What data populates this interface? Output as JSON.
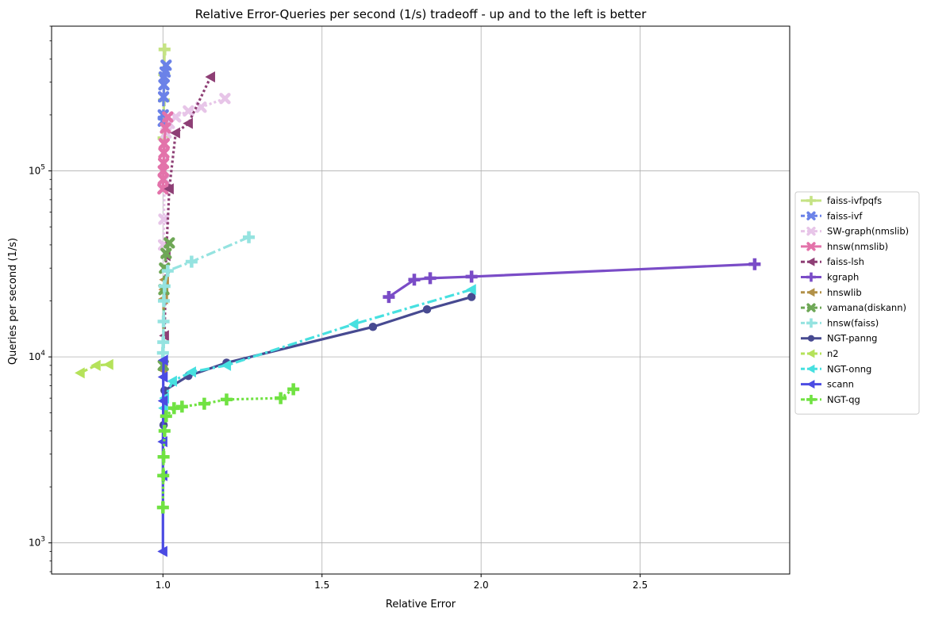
{
  "chart_data": {
    "type": "line",
    "title": "Relative Error-Queries per second (1/s) tradeoff - up and to the left is better",
    "xlabel": "Relative Error",
    "ylabel": "Queries per second (1/s)",
    "xscale": "linear",
    "yscale": "log",
    "xlim": [
      0.65,
      2.97
    ],
    "ylim": [
      680,
      600000
    ],
    "xticks": [
      1.0,
      1.5,
      2.0,
      2.5
    ],
    "xtick_labels": [
      "1.0",
      "1.5",
      "2.0",
      "2.5"
    ],
    "yticks": [
      1000,
      10000,
      100000
    ],
    "ytick_labels": [
      "10^3",
      "10^4",
      "10^5"
    ],
    "grid": true,
    "legend_position": "right, outside plot",
    "series": [
      {
        "name": "faiss-ivfpqfs",
        "color": "#c5e384",
        "marker": "plus",
        "linestyle": "solid",
        "points": [
          [
            1.005,
            450000
          ],
          [
            1.004,
            330000
          ],
          [
            1.003,
            240000
          ],
          [
            1.002,
            150000
          ]
        ]
      },
      {
        "name": "faiss-ivf",
        "color": "#6b82e8",
        "marker": "x",
        "linestyle": "dashed",
        "points": [
          [
            1.01,
            370000
          ],
          [
            1.007,
            340000
          ],
          [
            1.004,
            320000
          ],
          [
            1.003,
            290000
          ],
          [
            1.002,
            250000
          ],
          [
            1.001,
            200000
          ],
          [
            1.001,
            185000
          ]
        ]
      },
      {
        "name": "SW-graph(nmslib)",
        "color": "#e7c5e8",
        "marker": "x",
        "linestyle": "dotted",
        "points": [
          [
            1.195,
            245000
          ],
          [
            1.12,
            220000
          ],
          [
            1.08,
            210000
          ],
          [
            1.04,
            195000
          ],
          [
            1.02,
            180000
          ],
          [
            1.01,
            160000
          ],
          [
            1.005,
            90000
          ],
          [
            1.003,
            55000
          ],
          [
            1.002,
            40000
          ]
        ]
      },
      {
        "name": "hnsw(nmslib)",
        "color": "#e373aa",
        "marker": "x",
        "linestyle": "solid",
        "points": [
          [
            1.015,
            195000
          ],
          [
            1.008,
            170000
          ],
          [
            1.004,
            140000
          ],
          [
            1.003,
            125000
          ],
          [
            1.002,
            110000
          ],
          [
            1.001,
            100000
          ],
          [
            1.001,
            90000
          ],
          [
            1.0,
            80000
          ]
        ]
      },
      {
        "name": "faiss-lsh",
        "color": "#8e3f75",
        "marker": "triangle-left",
        "linestyle": "dotted",
        "points": [
          [
            1.15,
            320000
          ],
          [
            1.08,
            180000
          ],
          [
            1.04,
            160000
          ],
          [
            1.02,
            80000
          ],
          [
            1.01,
            35000
          ],
          [
            1.005,
            13000
          ]
        ]
      },
      {
        "name": "kgraph",
        "color": "#7a4cc7",
        "marker": "plus",
        "linestyle": "solid",
        "points": [
          [
            2.86,
            31500
          ],
          [
            1.97,
            27000
          ],
          [
            1.84,
            26500
          ],
          [
            1.79,
            26000
          ],
          [
            1.71,
            21000
          ]
        ]
      },
      {
        "name": "hnswlib",
        "color": "#b29149",
        "marker": "triangle-left",
        "linestyle": "dashed",
        "points": [
          [
            1.005,
            26000
          ],
          [
            1.003,
            23000
          ],
          [
            1.002,
            20500
          ],
          [
            1.001,
            9500
          ],
          [
            1.0,
            8500
          ]
        ]
      },
      {
        "name": "vamana(diskann)",
        "color": "#6ea756",
        "marker": "x",
        "linestyle": "dashed",
        "points": [
          [
            1.02,
            41000
          ],
          [
            1.01,
            36000
          ],
          [
            1.005,
            30000
          ],
          [
            1.003,
            23000
          ],
          [
            1.001,
            9000
          ]
        ]
      },
      {
        "name": "hnsw(faiss)",
        "color": "#95e3e0",
        "marker": "plus",
        "linestyle": "dashdot",
        "points": [
          [
            1.27,
            44000
          ],
          [
            1.09,
            32500
          ],
          [
            1.015,
            29000
          ],
          [
            1.005,
            24000
          ],
          [
            1.003,
            20000
          ],
          [
            1.002,
            15500
          ],
          [
            1.001,
            12000
          ],
          [
            1.0,
            10500
          ]
        ]
      },
      {
        "name": "NGT-panng",
        "color": "#474a91",
        "marker": "circle",
        "linestyle": "solid",
        "points": [
          [
            1.97,
            21000
          ],
          [
            1.83,
            18000
          ],
          [
            1.66,
            14500
          ],
          [
            1.2,
            9300
          ],
          [
            1.08,
            7900
          ],
          [
            1.005,
            6600
          ],
          [
            1.002,
            4300
          ]
        ]
      },
      {
        "name": "n2",
        "color": "#b5e25a",
        "marker": "triangle-left",
        "linestyle": "dashed",
        "points": [
          [
            0.74,
            8200
          ],
          [
            0.79,
            9000
          ],
          [
            0.83,
            9100
          ]
        ]
      },
      {
        "name": "NGT-onng",
        "color": "#47e0e0",
        "marker": "triangle-left",
        "linestyle": "dashdot",
        "points": [
          [
            1.97,
            23000
          ],
          [
            1.6,
            15000
          ],
          [
            1.2,
            9000
          ],
          [
            1.09,
            8300
          ],
          [
            1.03,
            7400
          ],
          [
            1.005,
            6000
          ],
          [
            1.002,
            5300
          ]
        ]
      },
      {
        "name": "scann",
        "color": "#4b4be3",
        "marker": "triangle-left",
        "linestyle": "solid",
        "points": [
          [
            1.002,
            9600
          ],
          [
            1.001,
            7800
          ],
          [
            1.001,
            5800
          ],
          [
            1.0,
            3500
          ],
          [
            1.0,
            2300
          ],
          [
            1.0,
            900
          ]
        ]
      },
      {
        "name": "NGT-qg",
        "color": "#70e242",
        "marker": "plus",
        "linestyle": "dotted",
        "points": [
          [
            1.41,
            6700
          ],
          [
            1.37,
            6000
          ],
          [
            1.2,
            5900
          ],
          [
            1.13,
            5600
          ],
          [
            1.06,
            5400
          ],
          [
            1.035,
            5300
          ],
          [
            1.01,
            4800
          ],
          [
            1.005,
            4000
          ],
          [
            1.002,
            2900
          ],
          [
            1.001,
            2300
          ],
          [
            1.0,
            1550
          ]
        ]
      }
    ]
  }
}
